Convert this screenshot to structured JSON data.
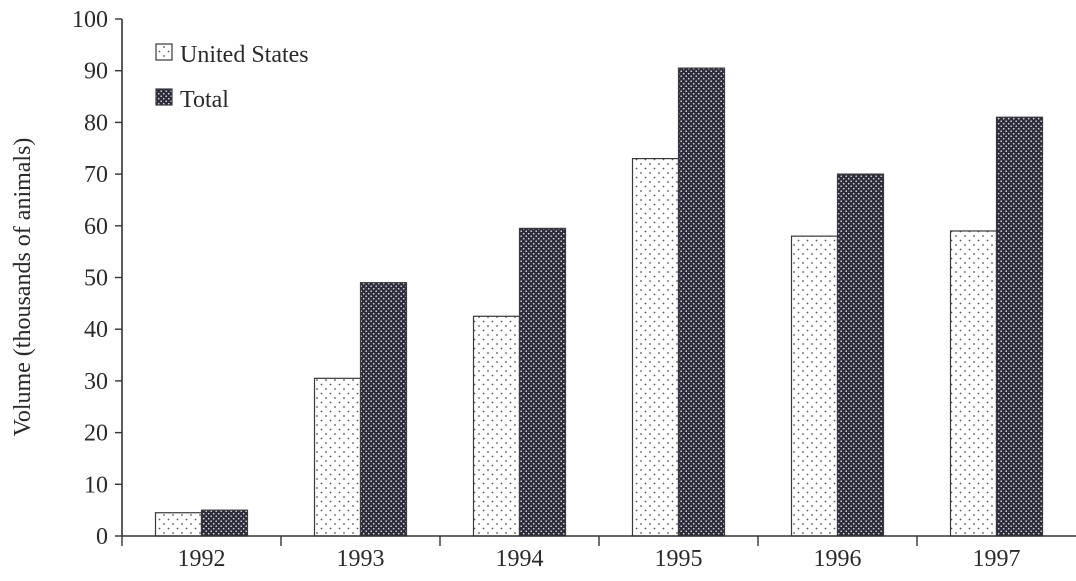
{
  "chart_data": {
    "type": "bar",
    "title": "",
    "xlabel": "",
    "ylabel": "Volume (thousands of animals)",
    "ylim": [
      0,
      100
    ],
    "yticks": [
      0,
      10,
      20,
      30,
      40,
      50,
      60,
      70,
      80,
      90,
      100
    ],
    "categories": [
      "1992",
      "1993",
      "1994",
      "1995",
      "1996",
      "1997"
    ],
    "series": [
      {
        "name": "United States",
        "values": [
          4.5,
          30.5,
          42.5,
          73,
          58,
          59
        ],
        "pattern": "light-dots"
      },
      {
        "name": "Total",
        "values": [
          5,
          49,
          59.5,
          90.5,
          70,
          81
        ],
        "pattern": "dark-dots"
      }
    ],
    "legend_position": "top-left",
    "grid": false
  }
}
